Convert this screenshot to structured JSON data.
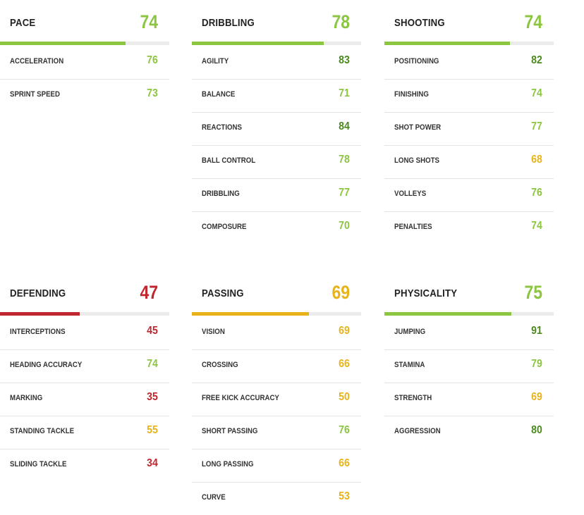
{
  "colors": {
    "very_high": "#4a8a1c",
    "high": "#8cc540",
    "mid": "#e8b31a",
    "low": "#c0262d",
    "bar_track": "#ebebeb"
  },
  "cards": [
    {
      "title": "PACE",
      "total": "74",
      "fill": 0.74,
      "stats": [
        {
          "label": "ACCELERATION",
          "value": "76"
        },
        {
          "label": "SPRINT SPEED",
          "value": "73"
        }
      ]
    },
    {
      "title": "DRIBBLING",
      "total": "78",
      "fill": 0.78,
      "stats": [
        {
          "label": "AGILITY",
          "value": "83"
        },
        {
          "label": "BALANCE",
          "value": "71"
        },
        {
          "label": "REACTIONS",
          "value": "84"
        },
        {
          "label": "BALL CONTROL",
          "value": "78"
        },
        {
          "label": "DRIBBLING",
          "value": "77"
        },
        {
          "label": "COMPOSURE",
          "value": "70"
        }
      ]
    },
    {
      "title": "SHOOTING",
      "total": "74",
      "fill": 0.74,
      "stats": [
        {
          "label": "POSITIONING",
          "value": "82"
        },
        {
          "label": "FINISHING",
          "value": "74"
        },
        {
          "label": "SHOT POWER",
          "value": "77"
        },
        {
          "label": "LONG SHOTS",
          "value": "68"
        },
        {
          "label": "VOLLEYS",
          "value": "76"
        },
        {
          "label": "PENALTIES",
          "value": "74"
        }
      ]
    },
    {
      "title": "DEFENDING",
      "total": "47",
      "fill": 0.47,
      "stats": [
        {
          "label": "INTERCEPTIONS",
          "value": "45"
        },
        {
          "label": "HEADING ACCURACY",
          "value": "74"
        },
        {
          "label": "MARKING",
          "value": "35"
        },
        {
          "label": "STANDING TACKLE",
          "value": "55"
        },
        {
          "label": "SLIDING TACKLE",
          "value": "34"
        }
      ]
    },
    {
      "title": "PASSING",
      "total": "69",
      "fill": 0.69,
      "stats": [
        {
          "label": "VISION",
          "value": "69"
        },
        {
          "label": "CROSSING",
          "value": "66"
        },
        {
          "label": "FREE KICK ACCURACY",
          "value": "50"
        },
        {
          "label": "SHORT PASSING",
          "value": "76"
        },
        {
          "label": "LONG PASSING",
          "value": "66"
        },
        {
          "label": "CURVE",
          "value": "53"
        }
      ]
    },
    {
      "title": "PHYSICALITY",
      "total": "75",
      "fill": 0.75,
      "stats": [
        {
          "label": "JUMPING",
          "value": "91"
        },
        {
          "label": "STAMINA",
          "value": "79"
        },
        {
          "label": "STRENGTH",
          "value": "69"
        },
        {
          "label": "AGGRESSION",
          "value": "80"
        }
      ]
    }
  ]
}
